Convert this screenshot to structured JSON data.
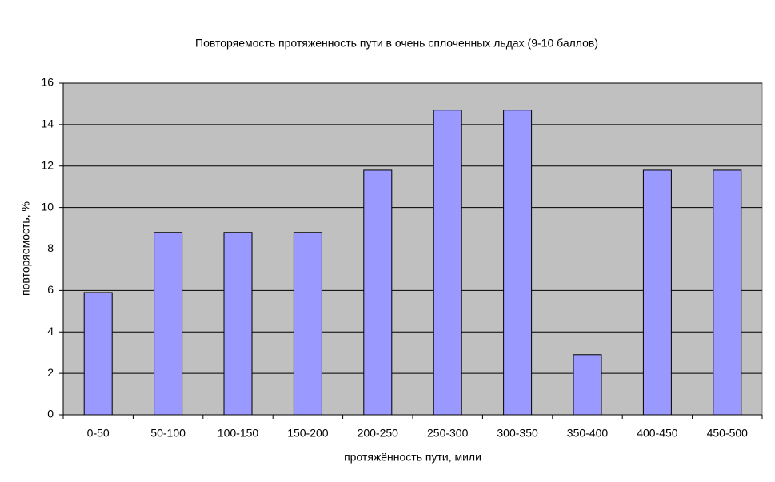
{
  "chart_data": {
    "type": "bar",
    "title": "Повторяемость протяженность пути в очень сплоченных льдах (9-10 баллов)",
    "x_label": "протяжённость пути, мили",
    "y_label": "повторяемость, %",
    "categories": [
      "0-50",
      "50-100",
      "100-150",
      "150-200",
      "200-250",
      "250-300",
      "300-350",
      "350-400",
      "400-450",
      "450-500"
    ],
    "values": [
      5.9,
      8.8,
      8.8,
      8.8,
      11.8,
      14.7,
      14.7,
      2.9,
      11.8,
      11.8
    ],
    "color": "#9999ff",
    "ylim": [
      0,
      16
    ],
    "yticks": [
      0,
      2,
      4,
      6,
      8,
      10,
      12,
      14,
      16
    ],
    "grid": true
  }
}
